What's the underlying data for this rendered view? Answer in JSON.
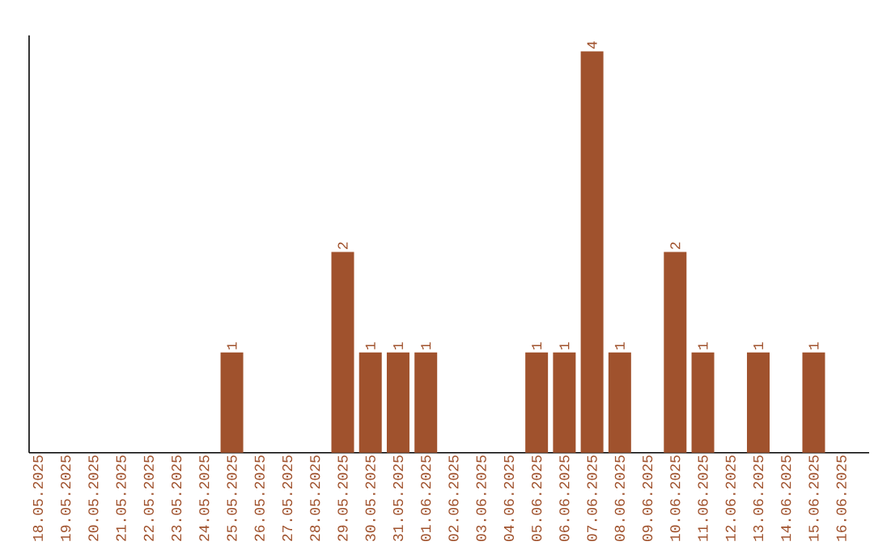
{
  "chart_data": {
    "type": "bar",
    "categories": [
      "18.05.2025",
      "19.05.2025",
      "20.05.2025",
      "21.05.2025",
      "22.05.2025",
      "23.05.2025",
      "24.05.2025",
      "25.05.2025",
      "26.05.2025",
      "27.05.2025",
      "28.05.2025",
      "29.05.2025",
      "30.05.2025",
      "31.05.2025",
      "01.06.2025",
      "02.06.2025",
      "03.06.2025",
      "04.06.2025",
      "05.06.2025",
      "06.06.2025",
      "07.06.2025",
      "08.06.2025",
      "09.06.2025",
      "10.06.2025",
      "11.06.2025",
      "12.06.2025",
      "13.06.2025",
      "14.06.2025",
      "15.06.2025",
      "16.06.2025"
    ],
    "values": [
      0,
      0,
      0,
      0,
      0,
      0,
      0,
      1,
      0,
      0,
      0,
      2,
      1,
      1,
      1,
      0,
      0,
      0,
      1,
      1,
      4,
      1,
      0,
      2,
      1,
      0,
      1,
      0,
      1,
      0
    ],
    "value_labels": [
      null,
      null,
      null,
      null,
      null,
      null,
      null,
      "1",
      null,
      null,
      null,
      "2",
      "1",
      "1",
      "1",
      null,
      null,
      null,
      "1",
      "1",
      "4",
      "1",
      null,
      "2",
      "1",
      null,
      "1",
      null,
      "1",
      null
    ],
    "color": "#a0522d",
    "ylim": [
      0,
      4.16
    ],
    "tick_labels": "x"
  }
}
